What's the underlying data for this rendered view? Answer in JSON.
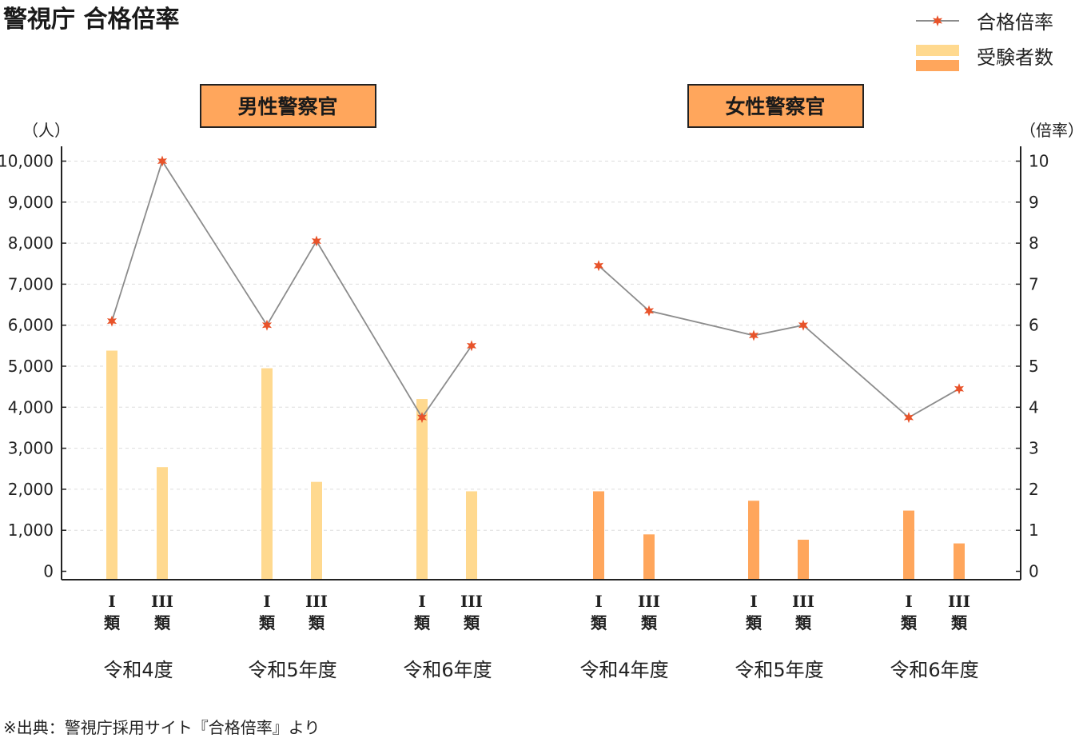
{
  "title": "警視庁 合格倍率",
  "legend": {
    "ratio": "合格倍率",
    "examinees": "受験者数"
  },
  "left_unit": "（人）",
  "right_unit": "（倍率）",
  "source": "※出典：警視庁採用サイト『合格倍率』より",
  "colors": {
    "male_bar": "#ffd98f",
    "female_bar": "#ffa65c",
    "line": "#8c8c8c",
    "marker": "#e8532a",
    "box": "#ffa65c"
  },
  "chart_data": {
    "type": "bar",
    "ylim": [
      0,
      10000
    ],
    "y2lim": [
      0,
      10
    ],
    "yticks": [
      "0",
      "1,000",
      "2,000",
      "3,000",
      "4,000",
      "5,000",
      "6,000",
      "7,000",
      "8,000",
      "9,000",
      "10,000"
    ],
    "y2ticks": [
      "0",
      "1",
      "2",
      "3",
      "4",
      "5",
      "6",
      "7",
      "8",
      "9",
      "10"
    ],
    "grid": true,
    "legend_position": "top-right",
    "panels": [
      {
        "label": "男性警察官",
        "groups": [
          {
            "label": "令和4度",
            "categories": [
              {
                "top": "I",
                "bottom": "類"
              },
              {
                "top": "III",
                "bottom": "類"
              }
            ],
            "examinees": [
              5380,
              2540
            ],
            "ratio": [
              6.1,
              10.0
            ]
          },
          {
            "label": "令和5年度",
            "categories": [
              {
                "top": "I",
                "bottom": "類"
              },
              {
                "top": "III",
                "bottom": "類"
              }
            ],
            "examinees": [
              4950,
              2180
            ],
            "ratio": [
              6.0,
              8.05
            ]
          },
          {
            "label": "令和6年度",
            "categories": [
              {
                "top": "I",
                "bottom": "類"
              },
              {
                "top": "III",
                "bottom": "類"
              }
            ],
            "examinees": [
              4200,
              1950
            ],
            "ratio": [
              3.75,
              5.5
            ]
          }
        ]
      },
      {
        "label": "女性警察官",
        "groups": [
          {
            "label": "令和4年度",
            "categories": [
              {
                "top": "I",
                "bottom": "類"
              },
              {
                "top": "III",
                "bottom": "類"
              }
            ],
            "examinees": [
              1950,
              900
            ],
            "ratio": [
              7.45,
              6.35
            ]
          },
          {
            "label": "令和5年度",
            "categories": [
              {
                "top": "I",
                "bottom": "類"
              },
              {
                "top": "III",
                "bottom": "類"
              }
            ],
            "examinees": [
              1720,
              770
            ],
            "ratio": [
              5.75,
              6.0
            ]
          },
          {
            "label": "令和6年度",
            "categories": [
              {
                "top": "I",
                "bottom": "類"
              },
              {
                "top": "III",
                "bottom": "類"
              }
            ],
            "examinees": [
              1480,
              680
            ],
            "ratio": [
              3.75,
              4.45
            ]
          }
        ]
      }
    ]
  }
}
